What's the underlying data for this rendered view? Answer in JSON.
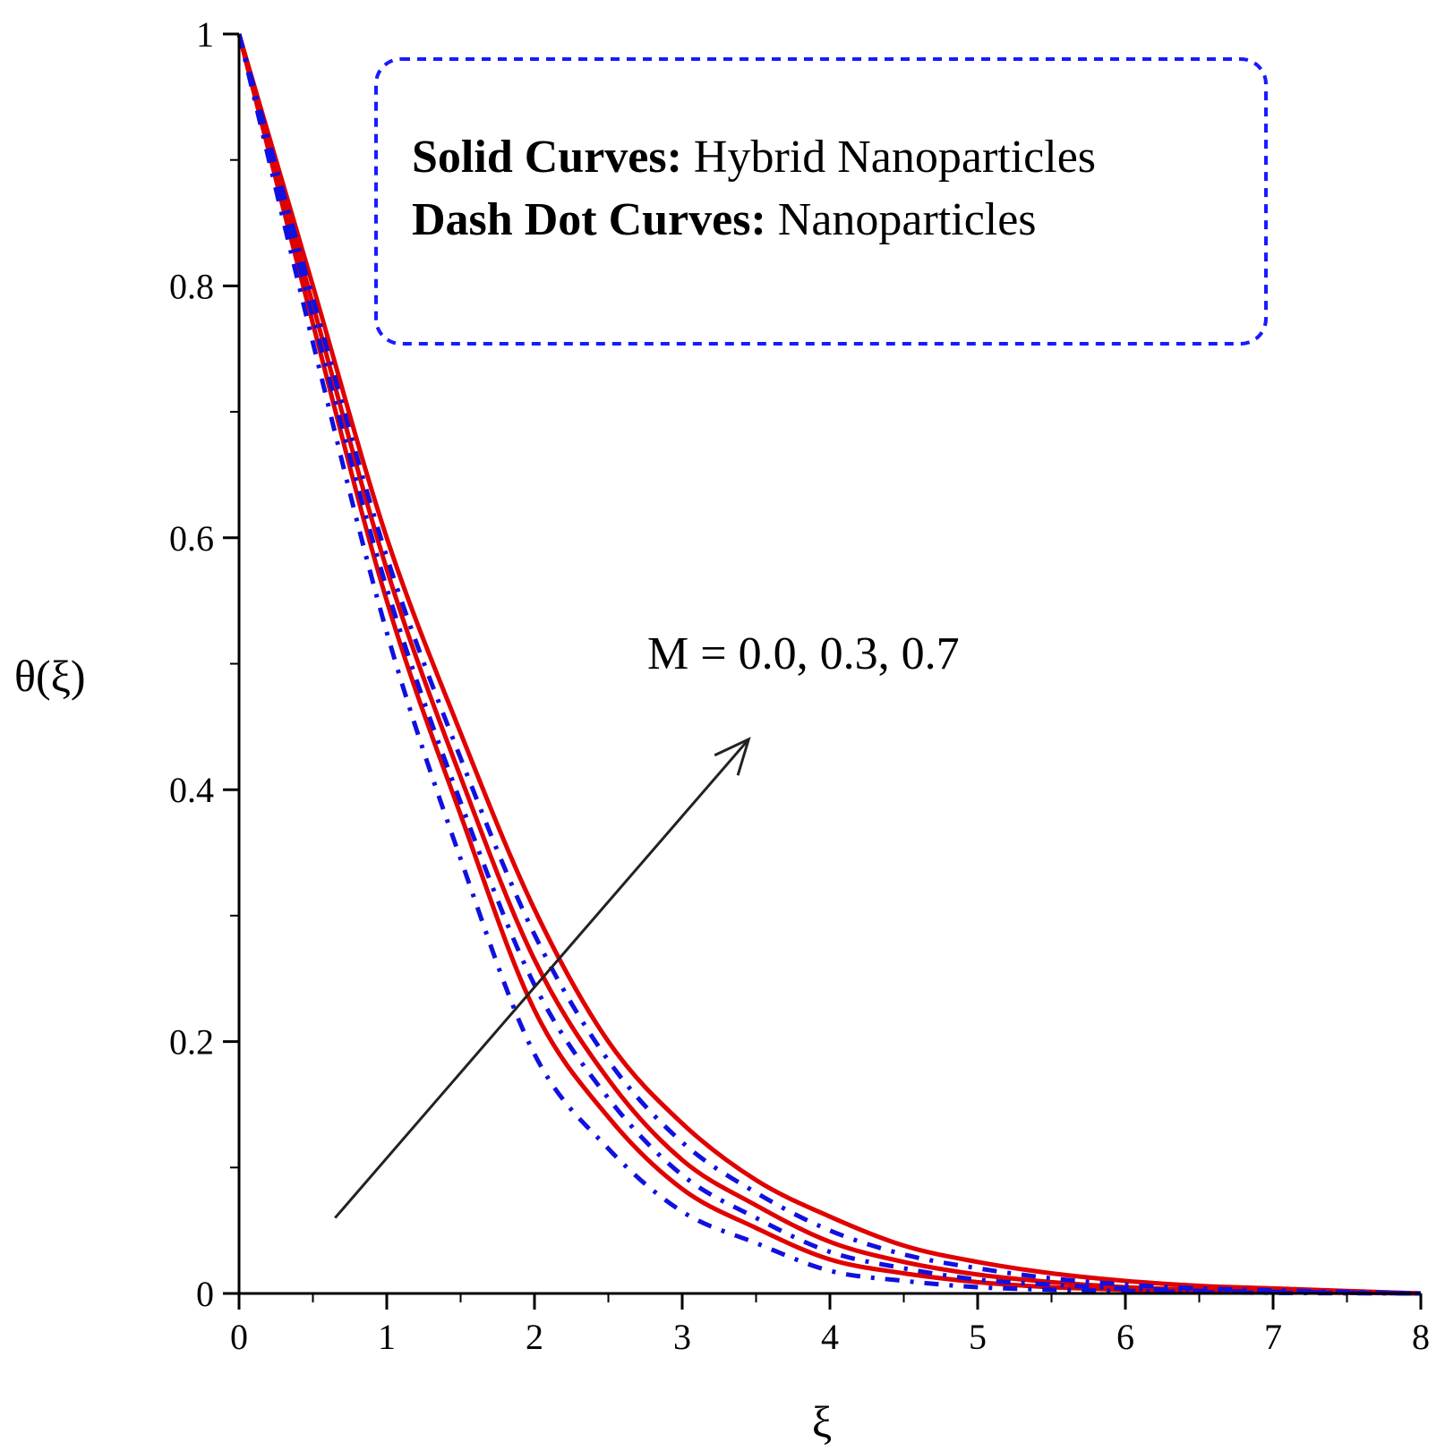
{
  "chart_data": {
    "type": "line",
    "title": "",
    "xlabel": "ξ",
    "ylabel": "θ(ξ)",
    "xlim": [
      0,
      8
    ],
    "ylim": [
      0,
      1
    ],
    "x_ticks": [
      "0",
      "1",
      "2",
      "3",
      "4",
      "5",
      "6",
      "7",
      "8"
    ],
    "y_ticks": [
      "0",
      "0.2",
      "0.4",
      "0.6",
      "0.8",
      "1"
    ],
    "grid": false,
    "legend": {
      "position": "top-right",
      "boxed": true,
      "solid_prefix": "Solid Curves:",
      "solid_text": " Hybrid Nanoparticles",
      "dash_prefix": "Dash Dot Curves:",
      "dash_text": " Nanoparticles"
    },
    "annotation": {
      "text": "M = 0.0, 0.3, 0.7",
      "arrow_from": [
        0.65,
        0.06
      ],
      "arrow_to": [
        3.45,
        0.44
      ]
    },
    "x": [
      0,
      0.5,
      1,
      1.5,
      2,
      2.5,
      3,
      3.5,
      4,
      4.5,
      5,
      5.5,
      6,
      6.5,
      7,
      7.5,
      8
    ],
    "series": [
      {
        "name": "Hybrid Nanoparticles, M = 0.0",
        "style": "solid",
        "color": "#e00000",
        "values": [
          1.0,
          0.77,
          0.55,
          0.38,
          0.225,
          0.14,
          0.083,
          0.052,
          0.027,
          0.016,
          0.009,
          0.005,
          0.003,
          0.002,
          0.001,
          0.0005,
          0.0
        ]
      },
      {
        "name": "Hybrid Nanoparticles, M = 0.3",
        "style": "solid",
        "color": "#e00000",
        "values": [
          1.0,
          0.785,
          0.575,
          0.41,
          0.265,
          0.17,
          0.106,
          0.07,
          0.041,
          0.025,
          0.015,
          0.009,
          0.005,
          0.003,
          0.002,
          0.001,
          0.0
        ]
      },
      {
        "name": "Hybrid Nanoparticles, M = 0.7",
        "style": "solid",
        "color": "#e00000",
        "values": [
          1.0,
          0.8,
          0.6,
          0.445,
          0.305,
          0.2,
          0.135,
          0.09,
          0.061,
          0.038,
          0.025,
          0.016,
          0.01,
          0.006,
          0.004,
          0.002,
          0.0
        ]
      },
      {
        "name": "Nanoparticles, M = 0.0",
        "style": "dashdot",
        "color": "#1010e0",
        "values": [
          1.0,
          0.755,
          0.525,
          0.345,
          0.19,
          0.115,
          0.065,
          0.04,
          0.018,
          0.01,
          0.005,
          0.003,
          0.002,
          0.001,
          0.0005,
          0.0002,
          0.0
        ]
      },
      {
        "name": "Nanoparticles, M = 0.3",
        "style": "dashdot",
        "color": "#1010e0",
        "values": [
          1.0,
          0.775,
          0.56,
          0.39,
          0.245,
          0.155,
          0.094,
          0.06,
          0.033,
          0.02,
          0.011,
          0.007,
          0.004,
          0.002,
          0.0012,
          0.0006,
          0.0
        ]
      },
      {
        "name": "Nanoparticles, M = 0.7",
        "style": "dashdot",
        "color": "#1010e0",
        "values": [
          1.0,
          0.79,
          0.585,
          0.425,
          0.285,
          0.185,
          0.12,
          0.08,
          0.05,
          0.031,
          0.02,
          0.012,
          0.007,
          0.004,
          0.0025,
          0.0012,
          0.0
        ]
      }
    ]
  }
}
